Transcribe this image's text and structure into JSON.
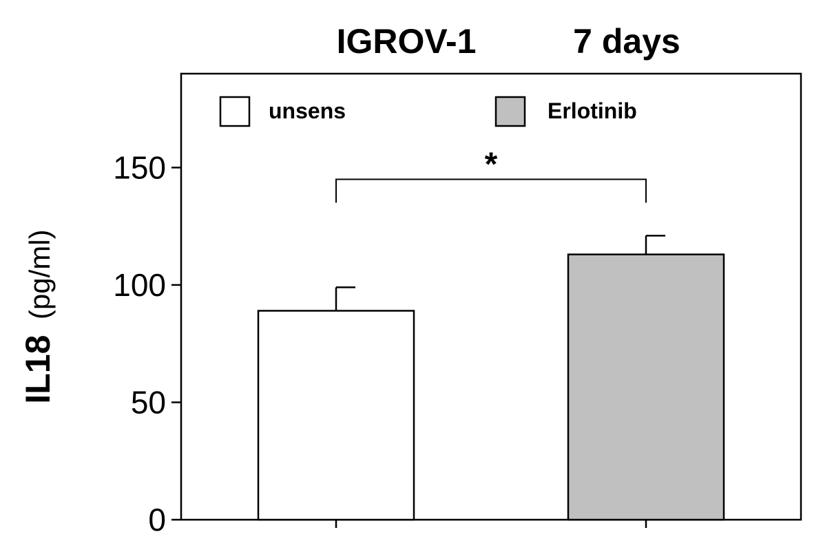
{
  "chart_data": {
    "type": "bar",
    "title_parts": [
      "IGROV-1",
      "7 days"
    ],
    "ylabel_main": "IL18",
    "ylabel_unit": "(pg/ml)",
    "xlabel": "",
    "ylim": [
      0,
      190
    ],
    "yticks": [
      0,
      50,
      100,
      150
    ],
    "legend_position": "top",
    "categories": [
      "unsens",
      "Erlotinib"
    ],
    "series": [
      {
        "name": "unsens",
        "value": 89,
        "error": 10,
        "color": "#ffffff"
      },
      {
        "name": "Erlotinib",
        "value": 113,
        "error": 8,
        "color": "#c0c0c0"
      }
    ],
    "significance": {
      "between": [
        0,
        1
      ],
      "label": "*"
    },
    "grid": false
  }
}
